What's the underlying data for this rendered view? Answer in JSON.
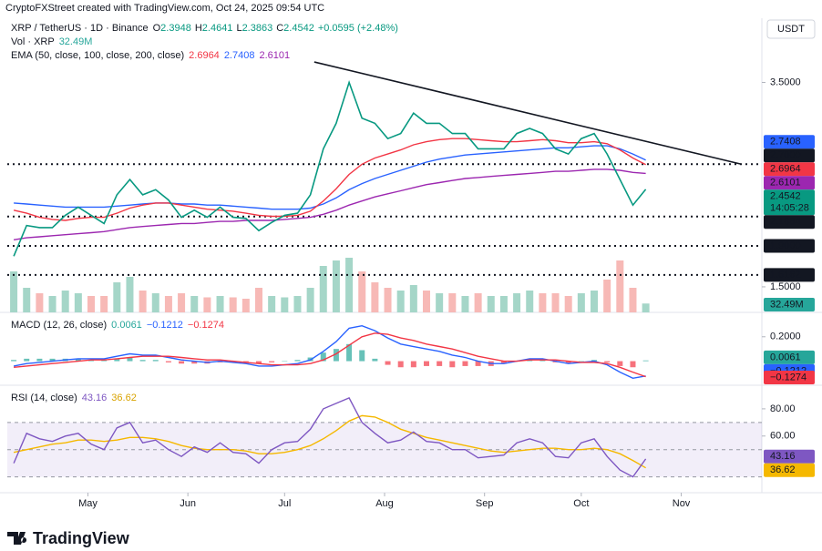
{
  "header": {
    "credit": "CryptoFXStreet created with TradingView.com, Oct 24, 2025 09:54 UTC",
    "symbol": "XRP / TetherUS · 1D · Binance",
    "ohlc": [
      {
        "key": "O",
        "value": 2.3948
      },
      {
        "key": "H",
        "value": 2.4641
      },
      {
        "key": "L",
        "value": 2.3863
      },
      {
        "key": "C",
        "value": 2.4542
      }
    ],
    "change": "+0.0595 (+2.48%)",
    "currency": "USDT"
  },
  "chart_data": [
    {
      "type": "line",
      "title": "EMA (50, close, 100, close, 200, close)",
      "ylim": [
        1.25,
        3.95
      ],
      "yticks": [
        {
          "value": 3.5,
          "label": "3.5000"
        },
        {
          "value": 1.5,
          "label": "1.5000"
        }
      ],
      "xlim": [
        -0.5,
        58
      ],
      "xticks": [
        {
          "value": 5.75,
          "label": "May"
        },
        {
          "value": 13.5,
          "label": "Jun"
        },
        {
          "value": 21,
          "label": "Jul"
        },
        {
          "value": 28.75,
          "label": "Aug"
        },
        {
          "value": 36.5,
          "label": "Sep"
        },
        {
          "value": 44,
          "label": "Oct"
        },
        {
          "value": 51.75,
          "label": "Nov"
        }
      ],
      "series": [
        {
          "color": "#089981",
          "countdown": "14:05:28",
          "values": [
            1.8,
            2.1,
            2.08,
            2.08,
            2.2,
            2.28,
            2.2,
            2.12,
            2.4,
            2.55,
            2.4,
            2.45,
            2.35,
            2.18,
            2.25,
            2.18,
            2.28,
            2.18,
            2.17,
            2.05,
            2.13,
            2.2,
            2.22,
            2.4,
            2.85,
            3.1,
            3.5,
            3.15,
            3.1,
            2.95,
            3.0,
            3.2,
            3.1,
            3.1,
            3.0,
            3.0,
            2.85,
            2.85,
            2.85,
            3.0,
            3.05,
            3.0,
            2.85,
            2.8,
            2.95,
            3.0,
            2.8,
            2.55,
            2.3,
            2.4542
          ]
        },
        {
          "color": "#f23645",
          "values": [
            2.25,
            2.22,
            2.18,
            2.16,
            2.15,
            2.17,
            2.18,
            2.18,
            2.22,
            2.27,
            2.3,
            2.32,
            2.32,
            2.3,
            2.28,
            2.26,
            2.25,
            2.24,
            2.22,
            2.2,
            2.19,
            2.19,
            2.2,
            2.24,
            2.34,
            2.46,
            2.6,
            2.7,
            2.76,
            2.8,
            2.84,
            2.89,
            2.92,
            2.94,
            2.95,
            2.95,
            2.94,
            2.93,
            2.92,
            2.92,
            2.93,
            2.94,
            2.93,
            2.91,
            2.91,
            2.92,
            2.9,
            2.84,
            2.76,
            2.6964
          ]
        },
        {
          "color": "#2962ff",
          "values": [
            2.32,
            2.31,
            2.3,
            2.29,
            2.28,
            2.28,
            2.28,
            2.28,
            2.29,
            2.3,
            2.31,
            2.32,
            2.32,
            2.31,
            2.31,
            2.3,
            2.3,
            2.29,
            2.28,
            2.27,
            2.26,
            2.26,
            2.26,
            2.27,
            2.31,
            2.37,
            2.45,
            2.51,
            2.56,
            2.6,
            2.64,
            2.68,
            2.72,
            2.75,
            2.77,
            2.79,
            2.8,
            2.81,
            2.82,
            2.83,
            2.84,
            2.85,
            2.86,
            2.86,
            2.87,
            2.88,
            2.88,
            2.85,
            2.8,
            2.7408
          ]
        },
        {
          "color": "#9c27b0",
          "values": [
            1.96,
            1.98,
            1.99,
            2.0,
            2.01,
            2.02,
            2.03,
            2.04,
            2.06,
            2.08,
            2.09,
            2.1,
            2.11,
            2.12,
            2.12,
            2.13,
            2.14,
            2.14,
            2.15,
            2.15,
            2.15,
            2.16,
            2.17,
            2.18,
            2.21,
            2.25,
            2.3,
            2.34,
            2.38,
            2.41,
            2.44,
            2.47,
            2.5,
            2.52,
            2.54,
            2.56,
            2.57,
            2.58,
            2.59,
            2.6,
            2.61,
            2.62,
            2.63,
            2.63,
            2.64,
            2.65,
            2.65,
            2.64,
            2.62,
            2.6101
          ]
        }
      ],
      "volume": {
        "title": "Vol · XRP",
        "color": "#26a69a",
        "up_color": "#a5d6c8",
        "down_color": "#f7b9b6",
        "values": [
          150,
          90,
          70,
          60,
          80,
          70,
          60,
          60,
          110,
          130,
          80,
          70,
          60,
          70,
          60,
          55,
          60,
          55,
          50,
          90,
          60,
          55,
          60,
          90,
          170,
          190,
          200,
          150,
          110,
          90,
          80,
          100,
          80,
          70,
          70,
          60,
          70,
          60,
          60,
          70,
          80,
          70,
          70,
          60,
          70,
          80,
          120,
          190,
          90,
          32.49
        ],
        "value_labels": [
          null,
          null,
          null,
          null,
          null,
          null,
          null,
          null,
          null,
          null,
          null,
          null,
          null,
          null,
          null,
          null,
          null,
          null,
          null,
          null,
          null,
          null,
          null,
          null,
          null,
          null,
          null,
          null,
          null,
          null,
          null,
          null,
          null,
          null,
          null,
          null,
          null,
          null,
          null,
          null,
          null,
          null,
          null,
          null,
          null,
          null,
          null,
          null,
          null,
          "32.49M"
        ]
      },
      "levels": [
        {
          "value": 2.7,
          "label": "2.7000"
        },
        {
          "value": 2.1884,
          "label": "2.1884"
        },
        {
          "value": 1.9,
          "label": "1.9000"
        },
        {
          "value": 1.6162,
          "label": "1.6162"
        }
      ],
      "trendline": {
        "x": [
          23.3,
          56.4
        ],
        "y": [
          3.7,
          2.7
        ]
      }
    },
    {
      "type": "macd",
      "title": "MACD (12, 26, close)",
      "ylim": [
        -0.19,
        0.385
      ],
      "yticks": [
        {
          "value": 0.2,
          "label": "0.2000"
        }
      ],
      "histogram": {
        "color": "#26a69a",
        "neg_color": "#f23645",
        "values": [
          0.01,
          0.02,
          0.02,
          0.02,
          0.02,
          0.02,
          0.01,
          0.01,
          0.02,
          0.03,
          0.01,
          0.01,
          -0.01,
          -0.02,
          -0.02,
          -0.02,
          -0.01,
          -0.01,
          -0.01,
          -0.02,
          -0.01,
          0.0,
          0.01,
          0.03,
          0.07,
          0.1,
          0.14,
          0.09,
          0.02,
          -0.03,
          -0.05,
          -0.05,
          -0.04,
          -0.04,
          -0.05,
          -0.04,
          -0.04,
          -0.04,
          -0.02,
          0.0,
          0.01,
          0.01,
          -0.01,
          -0.02,
          0.0,
          0.01,
          -0.01,
          -0.04,
          -0.05,
          0.0061
        ]
      },
      "series": [
        {
          "color": "#2962ff",
          "values": [
            -0.04,
            -0.02,
            -0.01,
            0.0,
            0.01,
            0.02,
            0.02,
            0.02,
            0.04,
            0.06,
            0.05,
            0.05,
            0.03,
            0.01,
            0.0,
            -0.01,
            0.0,
            -0.01,
            -0.02,
            -0.04,
            -0.04,
            -0.03,
            -0.02,
            0.01,
            0.08,
            0.16,
            0.27,
            0.29,
            0.25,
            0.19,
            0.14,
            0.12,
            0.1,
            0.08,
            0.05,
            0.03,
            0.0,
            -0.02,
            -0.02,
            0.0,
            0.02,
            0.02,
            0.0,
            -0.02,
            -0.01,
            0.0,
            -0.03,
            -0.09,
            -0.14,
            -0.1212
          ],
          "value_labels": [
            null,
            null,
            null,
            null,
            null,
            null,
            null,
            null,
            null,
            null,
            null,
            null,
            null,
            null,
            null,
            null,
            null,
            null,
            null,
            null,
            null,
            null,
            null,
            null,
            null,
            null,
            null,
            null,
            null,
            null,
            null,
            null,
            null,
            null,
            null,
            null,
            null,
            null,
            null,
            null,
            null,
            null,
            null,
            null,
            null,
            null,
            null,
            null,
            null,
            "−0.1212"
          ]
        },
        {
          "color": "#f23645",
          "values": [
            -0.05,
            -0.04,
            -0.03,
            -0.02,
            -0.01,
            0.0,
            0.01,
            0.01,
            0.02,
            0.03,
            0.04,
            0.04,
            0.04,
            0.03,
            0.02,
            0.01,
            0.01,
            0.0,
            -0.01,
            -0.02,
            -0.03,
            -0.03,
            -0.03,
            -0.02,
            0.01,
            0.06,
            0.13,
            0.2,
            0.23,
            0.22,
            0.19,
            0.17,
            0.14,
            0.12,
            0.1,
            0.07,
            0.04,
            0.02,
            0.0,
            0.0,
            0.01,
            0.01,
            0.01,
            0.0,
            -0.01,
            -0.01,
            -0.02,
            -0.05,
            -0.09,
            -0.1274
          ],
          "value_labels": [
            null,
            null,
            null,
            null,
            null,
            null,
            null,
            null,
            null,
            null,
            null,
            null,
            null,
            null,
            null,
            null,
            null,
            null,
            null,
            null,
            null,
            null,
            null,
            null,
            null,
            null,
            null,
            null,
            null,
            null,
            null,
            null,
            null,
            null,
            null,
            null,
            null,
            null,
            null,
            null,
            null,
            null,
            null,
            null,
            null,
            null,
            null,
            null,
            null,
            "−0.1274"
          ]
        }
      ]
    },
    {
      "type": "rsi",
      "title": "RSI (14, close)",
      "ylim": [
        19,
        96
      ],
      "yticks": [
        {
          "value": 80,
          "label": "80.00"
        },
        {
          "value": 60,
          "label": "60.00"
        }
      ],
      "levels": [
        70,
        50,
        30
      ],
      "band": [
        30,
        70
      ],
      "band_color": "#7e57c2",
      "series": [
        {
          "color": "#7e57c2",
          "values": [
            40,
            62,
            58,
            56,
            60,
            62,
            54,
            50,
            66,
            70,
            55,
            57,
            50,
            45,
            52,
            48,
            55,
            48,
            47,
            40,
            50,
            55,
            56,
            65,
            80,
            84,
            88,
            70,
            62,
            55,
            57,
            63,
            56,
            55,
            50,
            50,
            44,
            45,
            46,
            55,
            58,
            55,
            45,
            44,
            55,
            58,
            45,
            35,
            30,
            43.16
          ]
        },
        {
          "color": "#f5b800",
          "values": [
            48,
            50,
            52,
            54,
            55,
            57,
            57,
            56,
            57,
            59,
            59,
            58,
            56,
            53,
            51,
            50,
            50,
            50,
            49,
            47,
            47,
            48,
            50,
            53,
            58,
            64,
            71,
            75,
            74,
            70,
            65,
            62,
            59,
            57,
            55,
            53,
            51,
            49,
            48,
            49,
            50,
            51,
            51,
            50,
            50,
            51,
            50,
            47,
            42,
            36.62
          ]
        }
      ]
    }
  ],
  "footer": {
    "brand": "TradingView"
  }
}
